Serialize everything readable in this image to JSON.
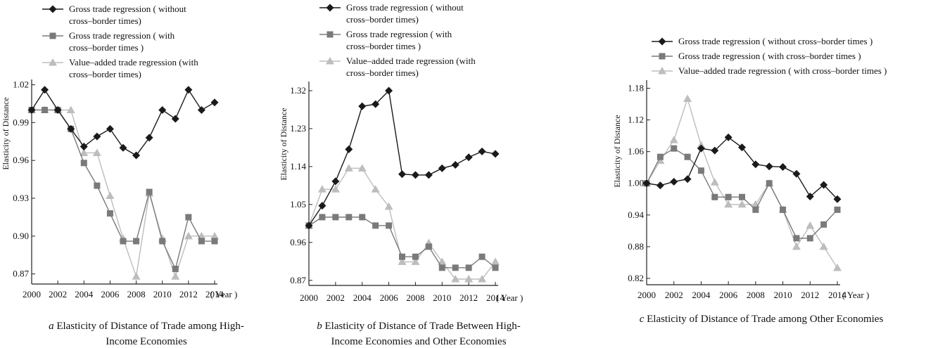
{
  "chart_data": [
    {
      "type": "line",
      "caption_letter": "a",
      "caption_lines": [
        "Elasticity of Distance of Trade among High-",
        "Income Economies"
      ],
      "ylabel": "Elasticity of Distance",
      "xlabel": "( Year )",
      "x": [
        2000,
        2001,
        2002,
        2003,
        2004,
        2005,
        2006,
        2007,
        2008,
        2009,
        2010,
        2011,
        2012,
        2013,
        2014
      ],
      "xticks": [
        2000,
        2002,
        2004,
        2006,
        2008,
        2010,
        2012,
        2014
      ],
      "yticks": [
        0.87,
        0.9,
        0.93,
        0.96,
        0.99,
        1.02
      ],
      "ylim": [
        0.862,
        1.022
      ],
      "legend": [
        [
          "Gross trade regression ( without",
          "cross–border times)"
        ],
        [
          "Gross trade regression ( with",
          "cross–border times )"
        ],
        [
          "Value–added trade regression (with",
          "cross–border times)"
        ]
      ],
      "series": [
        {
          "name": "Gross trade regression ( without cross–border times)",
          "marker": "diamond",
          "color": "#1a1a1a",
          "values": [
            1.0,
            1.016,
            1.0,
            0.985,
            0.971,
            0.979,
            0.985,
            0.97,
            0.964,
            0.978,
            1.0,
            0.993,
            1.016,
            1.0,
            1.006
          ]
        },
        {
          "name": "Gross trade regression ( with cross–border times )",
          "marker": "square",
          "color": "#7a7a7a",
          "values": [
            1.0,
            1.0,
            1.0,
            0.985,
            0.958,
            0.94,
            0.918,
            0.896,
            0.896,
            0.935,
            0.896,
            0.874,
            0.915,
            0.896,
            0.896
          ]
        },
        {
          "name": "Value–added trade regression (with cross–border times)",
          "marker": "triangle",
          "color": "#bdbdbd",
          "values": [
            1.0,
            1.0,
            1.0,
            1.0,
            0.966,
            0.966,
            0.932,
            0.898,
            0.868,
            0.934,
            0.898,
            0.868,
            0.9,
            0.9,
            0.9
          ]
        }
      ]
    },
    {
      "type": "line",
      "caption_letter": "b",
      "caption_lines": [
        "Elasticity of Distance of Trade Between High-",
        "Income Economies and Other Economies"
      ],
      "ylabel": "Elasticity of Distance",
      "xlabel": "( Year )",
      "x": [
        2000,
        2001,
        2002,
        2003,
        2004,
        2005,
        2006,
        2007,
        2008,
        2009,
        2010,
        2011,
        2012,
        2013,
        2014
      ],
      "xticks": [
        2000,
        2002,
        2004,
        2006,
        2008,
        2010,
        2012,
        2014
      ],
      "yticks": [
        0.87,
        0.96,
        1.05,
        1.14,
        1.23,
        1.32
      ],
      "ylim": [
        0.858,
        1.335
      ],
      "legend": [
        [
          "Gross trade regression ( without",
          "cross–border times)"
        ],
        [
          "Gross trade regression ( with",
          "cross–border times )"
        ],
        [
          "Value–added trade regression (with",
          "cross–border times)"
        ]
      ],
      "series": [
        {
          "name": "Gross trade regression ( without cross–border times)",
          "marker": "diamond",
          "color": "#1a1a1a",
          "values": [
            1.0,
            1.047,
            1.105,
            1.181,
            1.283,
            1.288,
            1.32,
            1.122,
            1.12,
            1.12,
            1.136,
            1.144,
            1.162,
            1.176,
            1.17
          ]
        },
        {
          "name": "Gross trade regression ( with cross–border times )",
          "marker": "square",
          "color": "#7a7a7a",
          "values": [
            1.0,
            1.02,
            1.02,
            1.02,
            1.02,
            1.0,
            1.0,
            0.926,
            0.926,
            0.95,
            0.9,
            0.9,
            0.9,
            0.926,
            0.9
          ]
        },
        {
          "name": "Value–added trade regression (with cross–border times)",
          "marker": "triangle",
          "color": "#bdbdbd",
          "values": [
            1.0,
            1.086,
            1.086,
            1.136,
            1.136,
            1.086,
            1.045,
            0.914,
            0.914,
            0.959,
            0.914,
            0.873,
            0.873,
            0.873,
            0.914
          ]
        }
      ]
    },
    {
      "type": "line",
      "caption_letter": "c",
      "caption_lines": [
        "Elasticity of Distance of Trade among Other Economies"
      ],
      "ylabel": "Elasticity of Distance",
      "xlabel": "( Year )",
      "x": [
        2000,
        2001,
        2002,
        2003,
        2004,
        2005,
        2006,
        2007,
        2008,
        2009,
        2010,
        2011,
        2012,
        2013,
        2014
      ],
      "xticks": [
        2000,
        2002,
        2004,
        2006,
        2008,
        2010,
        2012,
        2014
      ],
      "yticks": [
        0.82,
        0.88,
        0.94,
        1.0,
        1.06,
        1.12,
        1.18
      ],
      "ylim": [
        0.808,
        1.19
      ],
      "legend": [
        [
          "Gross trade regression ( without cross–border times )"
        ],
        [
          "Gross trade regression ( with cross–border times )"
        ],
        [
          "Value–added trade regression ( with cross–border times )"
        ]
      ],
      "series": [
        {
          "name": "Gross trade regression ( without cross–border times )",
          "marker": "diamond",
          "color": "#1a1a1a",
          "values": [
            1.0,
            0.996,
            1.003,
            1.008,
            1.066,
            1.062,
            1.087,
            1.068,
            1.036,
            1.032,
            1.031,
            1.018,
            0.975,
            0.997,
            0.97
          ]
        },
        {
          "name": "Gross trade regression ( with cross–border times )",
          "marker": "square",
          "color": "#7a7a7a",
          "values": [
            1.0,
            1.05,
            1.066,
            1.05,
            1.024,
            0.974,
            0.974,
            0.974,
            0.95,
            1.0,
            0.95,
            0.896,
            0.896,
            0.922,
            0.95
          ]
        },
        {
          "name": "Value–added trade regression ( with cross–border times )",
          "marker": "triangle",
          "color": "#bdbdbd",
          "values": [
            1.0,
            1.043,
            1.082,
            1.16,
            1.072,
            1.002,
            0.96,
            0.96,
            0.96,
            1.0,
            0.95,
            0.88,
            0.92,
            0.88,
            0.84
          ]
        }
      ]
    }
  ]
}
